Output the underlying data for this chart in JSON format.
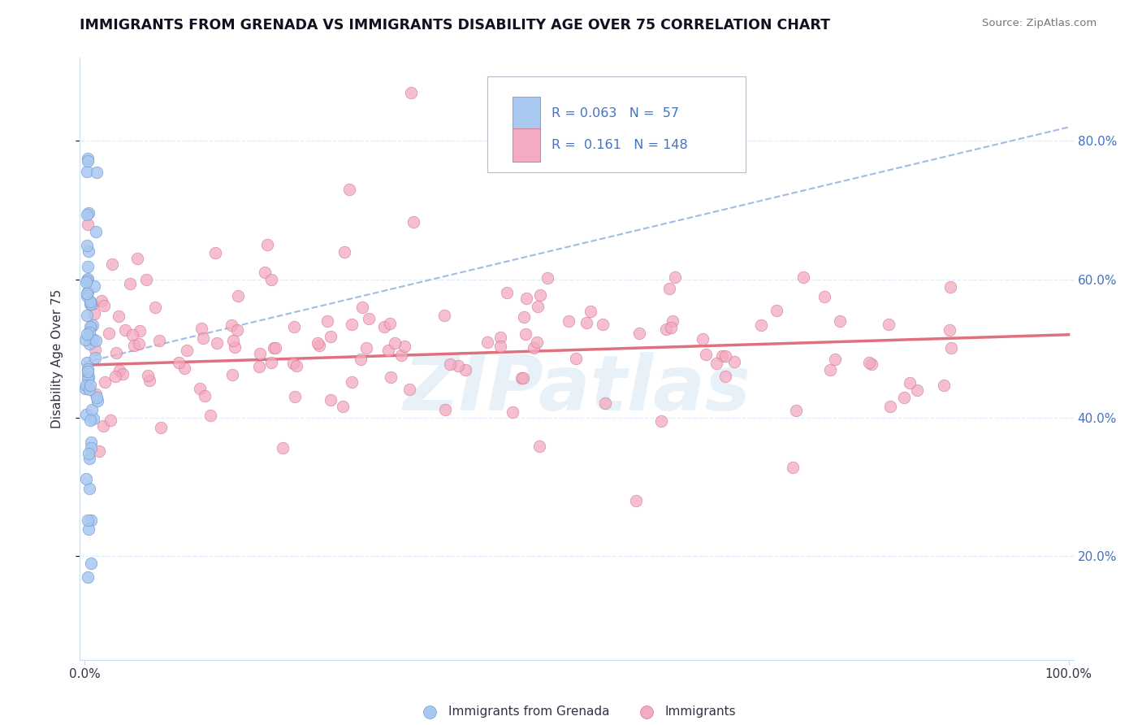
{
  "title": "IMMIGRANTS FROM GRENADA VS IMMIGRANTS DISABILITY AGE OVER 75 CORRELATION CHART",
  "source": "Source: ZipAtlas.com",
  "ylabel": "Disability Age Over 75",
  "blue_r": "0.063",
  "blue_n": "57",
  "pink_r": "0.161",
  "pink_n": "148",
  "blue_fill": "#a8c8f0",
  "pink_fill": "#f4aac0",
  "blue_edge": "#7098cc",
  "pink_edge": "#d07090",
  "blue_line": "#90b0e0",
  "pink_line": "#e06878",
  "grid_color": "#ddeeff",
  "axis_color": "#ccddee",
  "right_label_color": "#4472c4",
  "background": "#ffffff",
  "watermark_color": "#cce0f0",
  "title_color": "#111122",
  "label_color": "#333344",
  "ylim_low": 0.05,
  "ylim_high": 0.92,
  "xlim_low": -0.005,
  "xlim_high": 1.005,
  "grid_levels": [
    0.2,
    0.4,
    0.6,
    0.8
  ]
}
